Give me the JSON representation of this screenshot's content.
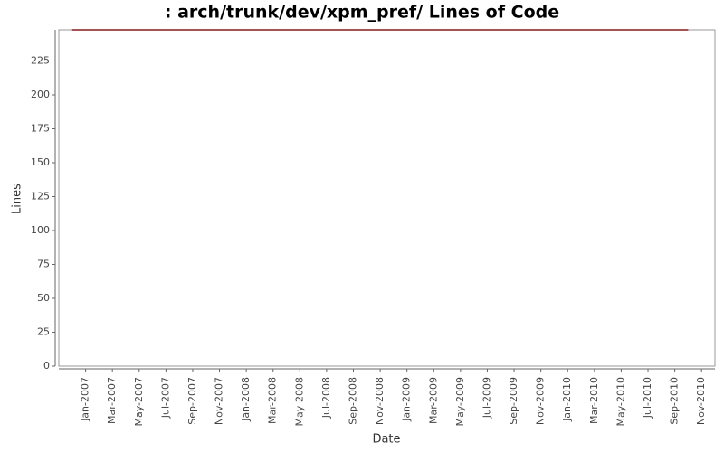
{
  "chart_data": {
    "type": "line",
    "title": ": arch/trunk/dev/xpm_pref/ Lines of Code",
    "x_label": "Date",
    "y_label": "Lines",
    "x": [
      "2006-12",
      "2010-10"
    ],
    "values": [
      248,
      248
    ],
    "color": "#8b1a1a",
    "xlim": [
      "2006-11",
      "2010-12"
    ],
    "xticks": [
      {
        "value": "2007-01",
        "label": "Jan-2007"
      },
      {
        "value": "2007-03",
        "label": "Mar-2007"
      },
      {
        "value": "2007-05",
        "label": "May-2007"
      },
      {
        "value": "2007-07",
        "label": "Jul-2007"
      },
      {
        "value": "2007-09",
        "label": "Sep-2007"
      },
      {
        "value": "2007-11",
        "label": "Nov-2007"
      },
      {
        "value": "2008-01",
        "label": "Jan-2008"
      },
      {
        "value": "2008-03",
        "label": "Mar-2008"
      },
      {
        "value": "2008-05",
        "label": "May-2008"
      },
      {
        "value": "2008-07",
        "label": "Jul-2008"
      },
      {
        "value": "2008-09",
        "label": "Sep-2008"
      },
      {
        "value": "2008-11",
        "label": "Nov-2008"
      },
      {
        "value": "2009-01",
        "label": "Jan-2009"
      },
      {
        "value": "2009-03",
        "label": "Mar-2009"
      },
      {
        "value": "2009-05",
        "label": "May-2009"
      },
      {
        "value": "2009-07",
        "label": "Jul-2009"
      },
      {
        "value": "2009-09",
        "label": "Sep-2009"
      },
      {
        "value": "2009-11",
        "label": "Nov-2009"
      },
      {
        "value": "2010-01",
        "label": "Jan-2010"
      },
      {
        "value": "2010-03",
        "label": "Mar-2010"
      },
      {
        "value": "2010-05",
        "label": "May-2010"
      },
      {
        "value": "2010-07",
        "label": "Jul-2010"
      },
      {
        "value": "2010-09",
        "label": "Sep-2010"
      },
      {
        "value": "2010-11",
        "label": "Nov-2010"
      }
    ],
    "ylim": [
      0,
      248
    ],
    "yticks": [
      0,
      25,
      50,
      75,
      100,
      125,
      150,
      175,
      200,
      225
    ],
    "grid": false
  }
}
